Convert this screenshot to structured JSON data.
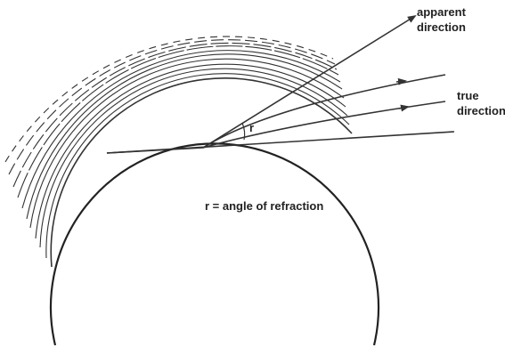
{
  "labels": {
    "apparent": [
      "apparent",
      "direction"
    ],
    "true": [
      "true",
      "direction"
    ],
    "angle": "r",
    "caption": "r = angle of refraction"
  }
}
